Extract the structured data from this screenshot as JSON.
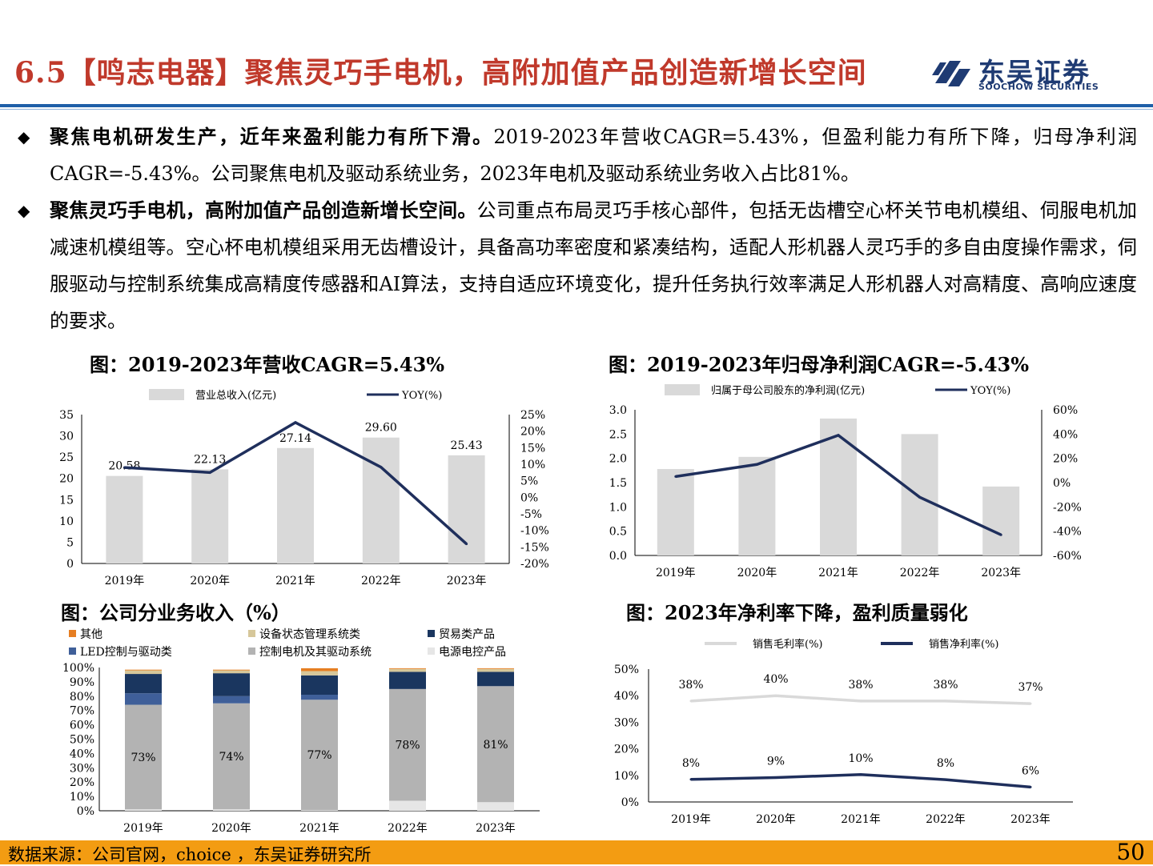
{
  "header": {
    "title": "6.5【鸣志电器】聚焦灵巧手电机，高附加值产品创造新增长空间",
    "logo_cn": "东吴证券",
    "logo_en": "SOOCHOW SECURITIES",
    "accent": "#c0392b",
    "brand": "#1f3b73"
  },
  "bullets": [
    {
      "icon": "diamond-bullet-icon",
      "bold": "聚焦电机研发生产，近年来盈利能力有所下滑。",
      "text": "2019-2023年营收CAGR=5.43%，但盈利能力有所下降，归母净利润CAGR=-5.43%。公司聚焦电机及驱动系统业务，2023年电机及驱动系统业务收入占比81%。"
    },
    {
      "icon": "diamond-bullet-icon",
      "bold": "聚焦灵巧手电机，高附加值产品创造新增长空间。",
      "text": "公司重点布局灵巧手核心部件，包括无齿槽空心杯关节电机模组、伺服电机加减速机模组等。空心杯电机模组采用无齿槽设计，具备高功率密度和紧凑结构，适配人形机器人灵巧手的多自由度操作需求，伺服驱动与控制系统集成高精度传感器和AI算法，支持自适应环境变化，提升任务执行效率满足人形机器人对高精度、高响应速度的要求。"
    }
  ],
  "chart_data": [
    {
      "id": "revenue",
      "type": "bar",
      "title": "图：2019-2023年营收CAGR=5.43%",
      "categories": [
        "2019年",
        "2020年",
        "2021年",
        "2022年",
        "2023年"
      ],
      "series": [
        {
          "name": "营业总收入(亿元)",
          "type": "bar",
          "axis": "left",
          "color": "#d9d9d9",
          "values": [
            20.58,
            22.13,
            27.14,
            29.6,
            25.43
          ],
          "labels": [
            "20.58",
            "22.13",
            "27.14",
            "29.60",
            "25.43"
          ]
        },
        {
          "name": "YOY(%)",
          "type": "line",
          "axis": "right",
          "color": "#1f2f5c",
          "values": [
            9,
            7.5,
            22.6,
            9.1,
            -14.1
          ]
        }
      ],
      "ylim_left": [
        0,
        35
      ],
      "ylim_right": [
        -20,
        25
      ],
      "yticks_left": [
        "0",
        "5",
        "10",
        "15",
        "20",
        "25",
        "30",
        "35"
      ],
      "yticks_right": [
        "-20%",
        "-15%",
        "-10%",
        "-5%",
        "0%",
        "5%",
        "10%",
        "15%",
        "20%",
        "25%"
      ],
      "legend": "top",
      "grid": false
    },
    {
      "id": "netprofit",
      "type": "bar",
      "title": "图：2019-2023年归母净利润CAGR=-5.43%",
      "categories": [
        "2019年",
        "2020年",
        "2021年",
        "2022年",
        "2023年"
      ],
      "series": [
        {
          "name": "归属于母公司股东的净利润(亿元)",
          "type": "bar",
          "axis": "left",
          "color": "#d9d9d9",
          "values": [
            1.78,
            2.03,
            2.82,
            2.5,
            1.42
          ]
        },
        {
          "name": "YOY(%)",
          "type": "line",
          "axis": "right",
          "color": "#1f2f5c",
          "values": [
            5,
            15,
            39,
            -12,
            -43
          ]
        }
      ],
      "ylim_left": [
        0,
        3
      ],
      "ylim_right": [
        -60,
        60
      ],
      "yticks_left": [
        "0.0",
        "0.5",
        "1.0",
        "1.5",
        "2.0",
        "2.5",
        "3.0"
      ],
      "yticks_right": [
        "-60%",
        "-40%",
        "-20%",
        "0%",
        "20%",
        "40%",
        "60%"
      ],
      "legend": "top",
      "grid": false
    },
    {
      "id": "segments",
      "type": "bar",
      "stacked": true,
      "title": "图：公司分业务收入（%）",
      "categories": [
        "2019年",
        "2020年",
        "2021年",
        "2022年",
        "2023年"
      ],
      "series": [
        {
          "name": "电源电控产品",
          "color": "#e6e6e6",
          "values": [
            1,
            1,
            0.5,
            7,
            6
          ]
        },
        {
          "name": "控制电机及其驱动系统",
          "color": "#b3b3b3",
          "values": [
            73,
            74,
            77,
            78,
            81
          ],
          "labels": [
            "73%",
            "74%",
            "77%",
            "78%",
            "81%"
          ]
        },
        {
          "name": "LED控制与驱动类",
          "color": "#3f5f99",
          "values": [
            8,
            5,
            3.5,
            0,
            0
          ]
        },
        {
          "name": "贸易类产品",
          "color": "#1a365f",
          "values": [
            13.5,
            16,
            13.5,
            12,
            10
          ]
        },
        {
          "name": "设备状态管理系统类",
          "color": "#d6c79a",
          "values": [
            2.5,
            2,
            3,
            2,
            2
          ]
        },
        {
          "name": "其他",
          "color": "#e67e22",
          "values": [
            0.5,
            0.5,
            2,
            0.5,
            0.5
          ]
        }
      ],
      "legend_order": [
        "其他",
        "设备状态管理系统类",
        "贸易类产品",
        "LED控制与驱动类",
        "控制电机及其驱动系统",
        "电源电控产品"
      ],
      "ylim": [
        0,
        100
      ],
      "yticks": [
        "0%",
        "10%",
        "20%",
        "30%",
        "40%",
        "50%",
        "60%",
        "70%",
        "80%",
        "90%",
        "100%"
      ],
      "legend": "top",
      "grid": false
    },
    {
      "id": "margins",
      "type": "line",
      "title": "图：2023年净利率下降，盈利质量弱化",
      "categories": [
        "2019年",
        "2020年",
        "2021年",
        "2022年",
        "2023年"
      ],
      "series": [
        {
          "name": "销售毛利率(%)",
          "color": "#d9d9d9",
          "values": [
            38,
            40,
            38,
            38,
            37
          ],
          "labels": [
            "38%",
            "40%",
            "38%",
            "38%",
            "37%"
          ]
        },
        {
          "name": "销售净利率(%)",
          "color": "#1f2f5c",
          "values": [
            8.5,
            9.2,
            10.3,
            8.4,
            5.6
          ],
          "labels": [
            "8%",
            "9%",
            "10%",
            "8%",
            "6%"
          ]
        }
      ],
      "ylim": [
        0,
        50
      ],
      "yticks": [
        "0%",
        "10%",
        "20%",
        "30%",
        "40%",
        "50%"
      ],
      "legend": "top",
      "grid": false
    }
  ],
  "footer": {
    "source": "数据来源：公司官网，choice ，东吴证券研究所",
    "page": "50",
    "color": "#f39c12"
  }
}
